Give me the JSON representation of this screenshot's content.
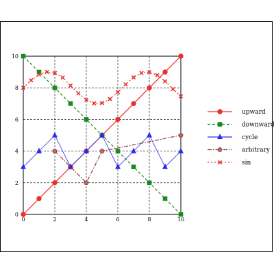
{
  "chart_data": {
    "type": "line",
    "title": "",
    "xlabel": "",
    "ylabel": "",
    "xlim": [
      0,
      10
    ],
    "ylim": [
      0,
      10
    ],
    "x_ticks": [
      "0",
      "2",
      "4",
      "6",
      "8",
      "10"
    ],
    "y_ticks": [
      "0",
      "2",
      "4",
      "6",
      "8",
      "10"
    ],
    "grid": true,
    "legend_position": "right",
    "x": [
      0,
      1,
      2,
      3,
      4,
      5,
      6,
      7,
      8,
      9,
      10
    ],
    "series": [
      {
        "name": "upward",
        "color": "#e8302c",
        "marker": "circle",
        "dash": "solid",
        "values": [
          0,
          1,
          2,
          3,
          4,
          5,
          6,
          7,
          8,
          9,
          10
        ]
      },
      {
        "name": "downward",
        "color": "#1a8a1a",
        "marker": "square",
        "dash": "dashed",
        "values": [
          10,
          9,
          8,
          7,
          6,
          5,
          4,
          3,
          2,
          1,
          0
        ]
      },
      {
        "name": "cycle",
        "color": "#2a2af0",
        "marker": "triangle",
        "dash": "solid",
        "values": [
          3,
          4,
          5,
          3,
          4,
          5,
          3,
          4,
          5,
          3,
          4
        ]
      },
      {
        "name": "arbitrary",
        "color": "#8b3a3a",
        "marker": "pentagon",
        "dash": "dashdot",
        "values": [
          null,
          null,
          4,
          null,
          2,
          4,
          null,
          null,
          null,
          null,
          5
        ]
      },
      {
        "name": "sin",
        "color": "#e8302c",
        "marker": "x",
        "dash": "dotted",
        "values_dense": [
          {
            "x": 0.0,
            "y": 8.0
          },
          {
            "x": 0.5,
            "y": 8.48
          },
          {
            "x": 1.0,
            "y": 8.84
          },
          {
            "x": 1.5,
            "y": 9.0
          },
          {
            "x": 2.0,
            "y": 8.93
          },
          {
            "x": 2.5,
            "y": 8.65
          },
          {
            "x": 3.0,
            "y": 8.14
          },
          {
            "x": 3.5,
            "y": 7.65
          },
          {
            "x": 4.0,
            "y": 7.24
          },
          {
            "x": 4.5,
            "y": 7.02
          },
          {
            "x": 5.0,
            "y": 7.04
          },
          {
            "x": 5.5,
            "y": 7.29
          },
          {
            "x": 6.0,
            "y": 7.72
          },
          {
            "x": 6.5,
            "y": 8.22
          },
          {
            "x": 7.0,
            "y": 8.66
          },
          {
            "x": 7.5,
            "y": 8.94
          },
          {
            "x": 8.0,
            "y": 8.99
          },
          {
            "x": 8.5,
            "y": 8.8
          },
          {
            "x": 9.0,
            "y": 8.41
          },
          {
            "x": 9.5,
            "y": 7.92
          },
          {
            "x": 10.0,
            "y": 7.46
          }
        ]
      }
    ]
  }
}
